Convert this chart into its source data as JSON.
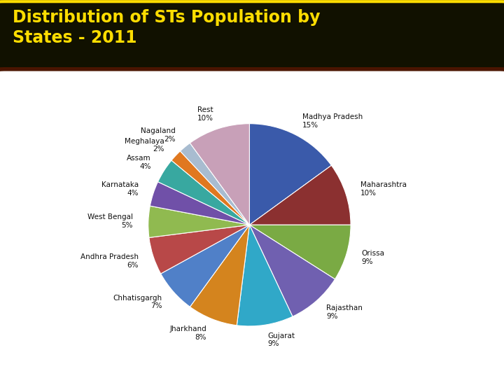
{
  "title_text": "Distribution of STs Population by\nStates - 2011",
  "title_bg": "#111100",
  "title_border": "#ffdd00",
  "title_color": "#ffdd00",
  "chart_bg": "#ffffff",
  "chart_border": "#4a1500",
  "labels": [
    "Madhya Pradesh",
    "Maharashtra",
    "Orissa",
    "Rajasthan",
    "Gujarat",
    "Jharkhand",
    "Chhatisgargh",
    "Andhra Pradesh",
    "West Bengal",
    "Karnataka",
    "Assam",
    "Meghalaya",
    "Nagaland",
    "Rest"
  ],
  "pcts": [
    "15%",
    "10%",
    "9%",
    "9%",
    "9%",
    "8%",
    "7%",
    "6%",
    "5%",
    "4%",
    "4%",
    "2%",
    "2%",
    "10%"
  ],
  "values": [
    15,
    10,
    9,
    9,
    9,
    8,
    7,
    6,
    5,
    4,
    4,
    2,
    2,
    10
  ],
  "colors": [
    "#3a5aaa",
    "#8b3030",
    "#7aaa44",
    "#7060b0",
    "#30a8c8",
    "#d4841e",
    "#5080c8",
    "#b84848",
    "#90ba50",
    "#7050a8",
    "#38a8a0",
    "#e07820",
    "#a8bcd0",
    "#c8a0b8"
  ],
  "label_fontsize": 7.5,
  "pct_fontsize": 7.5,
  "title_fontsize": 17
}
